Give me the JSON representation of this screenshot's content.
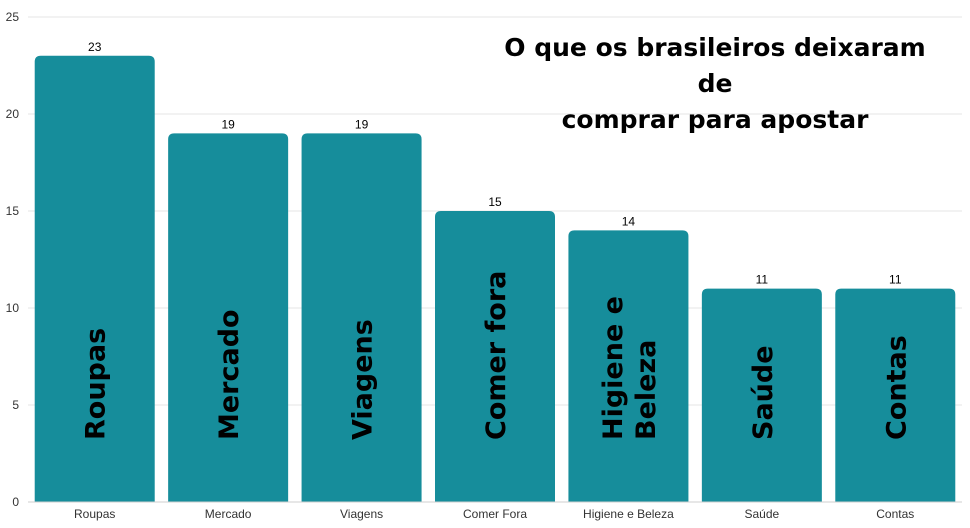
{
  "chart_data": {
    "type": "bar",
    "title_lines": [
      "O que os brasileiros deixaram de",
      "comprar para apostar"
    ],
    "categories": [
      "Roupas",
      "Mercado",
      "Viagens",
      "Comer Fora",
      "Higiene e Beleza",
      "Saúde",
      "Contas"
    ],
    "bar_labels": [
      [
        "Roupas"
      ],
      [
        "Mercado"
      ],
      [
        "Viagens"
      ],
      [
        "Comer fora"
      ],
      [
        "Higiene e",
        "Beleza"
      ],
      [
        "Saúde"
      ],
      [
        "Contas"
      ]
    ],
    "values": [
      23,
      19,
      19,
      15,
      14,
      11,
      11
    ],
    "ylim": [
      0,
      25
    ],
    "yticks": [
      0,
      5,
      10,
      15,
      20,
      25
    ],
    "xlabel": "",
    "ylabel": "",
    "grid": true,
    "bar_color": "#168d9b",
    "grid_color": "#e6e6e6"
  }
}
